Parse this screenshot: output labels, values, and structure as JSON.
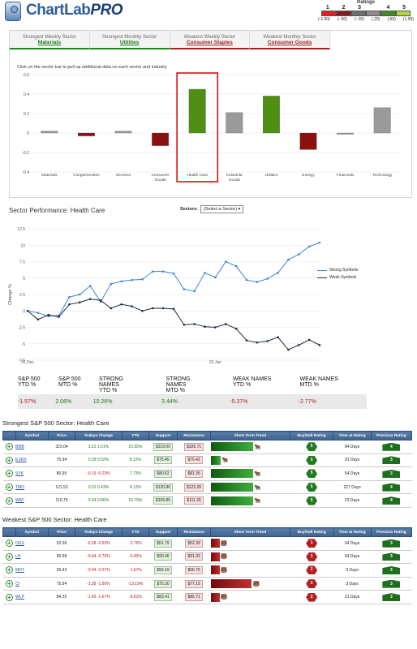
{
  "logo": {
    "name": "ChartLab",
    "suffix": "PRO"
  },
  "ratings": {
    "title": "Ratings",
    "levels": [
      {
        "num": "1",
        "label": "(-1.00)",
        "color": "#e02020"
      },
      {
        "num": "2",
        "label": "(-.60)",
        "color": "#8b1a1a"
      },
      {
        "num": "3",
        "label": "(-.30)",
        "color": "#6e6e6e"
      },
      {
        "num": "",
        "label": "(.20)",
        "color": "#8c8c8c"
      },
      {
        "num": "4",
        "label": "(.60)",
        "color": "#3f8f1e"
      },
      {
        "num": "5",
        "label": "(1.00)",
        "color": "#b6d73a"
      }
    ]
  },
  "tabs": [
    {
      "label": "Strongest Weekly Sector",
      "value": "Materials",
      "kind": "strong"
    },
    {
      "label": "Strongest Monthly Sector",
      "value": "Utilities",
      "kind": "strong"
    },
    {
      "label": "Weakest Weekly Sector",
      "value": "Consumer Staples",
      "kind": "weak"
    },
    {
      "label": "Weakest Monthly Sector",
      "value": "Consumer Goods",
      "kind": "weak"
    }
  ],
  "sector_chart": {
    "instruction": "Click on the sector bar to pull up additional data on each sector and industry",
    "chart_data": {
      "type": "bar",
      "categories": [
        "Materials",
        "Conglomerates",
        "Services",
        "Consumer Goods",
        "Health Care",
        "Industrial Goods",
        "Utilities",
        "Energy",
        "Financials",
        "Technology"
      ],
      "values": [
        0.02,
        -0.03,
        0.02,
        -0.13,
        0.45,
        0.21,
        0.38,
        -0.17,
        0.0,
        0.26
      ],
      "colors": [
        "#9a9a9a",
        "#8b1010",
        "#9a9a9a",
        "#8b1010",
        "#4e8f14",
        "#9a9a9a",
        "#4e8f14",
        "#8b1010",
        "#9a9a9a",
        "#9a9a9a"
      ],
      "selected": "Health Care",
      "ylim": [
        -0.4,
        0.6
      ],
      "yticks": [
        "0.6",
        "0.4",
        "0.2",
        "0",
        "-0.2",
        "-0.4"
      ],
      "grid": true
    }
  },
  "performance": {
    "title": "Sector Performance: Health Care",
    "sectors_label": "Sectors:",
    "sector_select": "(Select a Sector)",
    "chart_data": {
      "type": "line",
      "ylabel": "Change %",
      "ylim": [
        -7.5,
        12.5
      ],
      "yticks": [
        "12.5",
        "10",
        "7.5",
        "5",
        "2.5",
        "0",
        "-2.5",
        "-5",
        "-7.5"
      ],
      "xticks": [
        "31 Dec",
        "23 Jan"
      ],
      "xtick_index": [
        0,
        18
      ],
      "series": [
        {
          "name": "Strong Symbols",
          "color": "#3d86d6",
          "values": [
            0,
            -0.3,
            -0.8,
            -0.7,
            2.1,
            2.5,
            3.8,
            1.4,
            4.1,
            4.5,
            4.7,
            4.8,
            6.0,
            6.0,
            5.7,
            3.3,
            3.0,
            5.8,
            5.1,
            7.5,
            6.8,
            4.7,
            4.4,
            4.9,
            5.8,
            7.8,
            8.6,
            9.8,
            10.4
          ]
        },
        {
          "name": "Weak Symbols",
          "color": "#1c2a3a",
          "values": [
            0,
            -1.3,
            -0.6,
            -0.9,
            1.0,
            1.3,
            1.8,
            1.6,
            0.4,
            1.0,
            0.7,
            0.0,
            0.4,
            0.4,
            0.3,
            -2.1,
            -2.0,
            -2.4,
            -2.5,
            -2.0,
            -2.7,
            -4.5,
            -4.8,
            -4.6,
            -4.0,
            -5.9,
            -5.2,
            -4.4,
            -5.2
          ]
        }
      ]
    },
    "stats": [
      {
        "label1": "S&P 500",
        "label2": "YTD %",
        "value": "-1.57%",
        "tone": "neg",
        "wide": false
      },
      {
        "label1": "S&P 500",
        "label2": "MTD %",
        "value": "2.06%",
        "tone": "pos",
        "wide": false
      },
      {
        "label1": "STRONG NAMES",
        "label2": "YTD %",
        "value": "10.26%",
        "tone": "pos",
        "wide": true
      },
      {
        "label1": "STRONG NAMES",
        "label2": "MTD %",
        "value": "3.44%",
        "tone": "pos",
        "wide": true
      },
      {
        "label1": "WEAK NAMES",
        "label2": "YTD %",
        "value": "-5.37%",
        "tone": "neg",
        "wide": true
      },
      {
        "label1": "WEAK NAMES",
        "label2": "MTD %",
        "value": "-2.77%",
        "tone": "neg",
        "wide": true
      }
    ]
  },
  "table_headers": [
    "",
    "Symbol",
    "Price",
    "Todays Change",
    "YTD",
    "Support",
    "Resistance",
    "Short Term Trend",
    "Buy/Sell Rating",
    "Time at Rating",
    "Previous Rating"
  ],
  "strong": {
    "title": "Strongest S&P 500 Sector: Health Care",
    "rows": [
      {
        "symbol": "BMB",
        "price": "323.04",
        "chg": "3.22",
        "pct": "1.01%",
        "ytd": "15.55%",
        "support": "$319.00",
        "resistance": "$326.71",
        "trend": 0.85,
        "rating": "5",
        "time": "84 Days",
        "prev": "4"
      },
      {
        "symbol": "ESRX",
        "price": "75.94",
        "chg": "0.39",
        "pct": "0.52%",
        "ytd": "8.12%",
        "support": "$75.45",
        "resistance": "$76.42",
        "trend": 0.2,
        "rating": "5",
        "time": "91 Days",
        "prev": "3"
      },
      {
        "symbol": "SYK",
        "price": "80.95",
        "chg": "-0.19",
        "pct": "-0.23%",
        "ytd": "7.73%",
        "support": "$80.62",
        "resistance": "$81.35",
        "trend": 0.85,
        "rating": "5",
        "time": "54 Days",
        "prev": "3"
      },
      {
        "symbol": "TMO",
        "price": "121.52",
        "chg": "0.52",
        "pct": "0.43%",
        "ytd": "9.13%",
        "support": "$120.86",
        "resistance": "$122.05",
        "trend": 0.85,
        "rating": "5",
        "time": "227 Days",
        "prev": "4"
      },
      {
        "symbol": "WAT",
        "price": "110.79",
        "chg": "0.94",
        "pct": "0.86%",
        "ytd": "10.79%",
        "support": "$109.85",
        "resistance": "$111.26",
        "trend": 0.85,
        "rating": "5",
        "time": "23 Days",
        "prev": "4"
      }
    ]
  },
  "weak": {
    "title": "Weakest S&P 500 Sector: Health Care",
    "rows": [
      {
        "symbol": "DGX",
        "price": "52.06",
        "chg": "-0.28",
        "pct": "-0.53%",
        "ytd": "-2.76%",
        "support": "$51.79",
        "resistance": "$52.39",
        "trend": 0.18,
        "rating": "1",
        "time": "64 Days",
        "prev": "3"
      },
      {
        "symbol": "LH",
        "price": "90.98",
        "chg": "-0.64",
        "pct": "-0.70%",
        "ytd": "-0.43%",
        "support": "$90.46",
        "resistance": "$91.93",
        "trend": 0.18,
        "rating": "1",
        "time": "64 Days",
        "prev": "3"
      },
      {
        "symbol": "MDT",
        "price": "56.43",
        "chg": "-0.04",
        "pct": "-0.07%",
        "ytd": "-1.67%",
        "support": "$56.19",
        "resistance": "$56.75",
        "trend": 0.18,
        "rating": "2",
        "time": "9 Days",
        "prev": "3"
      },
      {
        "symbol": "CI",
        "price": "75.94",
        "chg": "-1.28",
        "pct": "-1.66%",
        "ytd": "-13.19%",
        "support": "$75.20",
        "resistance": "$77.15",
        "trend": 0.82,
        "rating": "2",
        "time": "3 Days",
        "prev": "3"
      },
      {
        "symbol": "WLP",
        "price": "84.25",
        "chg": "-1.43",
        "pct": "-1.67%",
        "ytd": "-8.81%",
        "support": "$83.41",
        "resistance": "$85.71",
        "trend": 0.18,
        "rating": "2",
        "time": "21 Days",
        "prev": "3"
      }
    ]
  }
}
